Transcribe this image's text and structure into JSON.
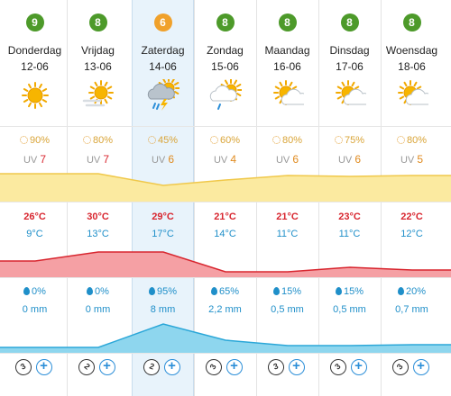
{
  "colors": {
    "badge_green": "#4d9a2a",
    "badge_orange": "#f0a12b",
    "temp_max": "#d8262f",
    "temp_min": "#1f8fc9",
    "rain": "#1f8fc9",
    "uv_band": "#fbeaa0",
    "temp_band": "#f5a0a4",
    "rain_band": "#8ed6ee"
  },
  "days": [
    {
      "score": "9",
      "score_color": "green",
      "day": "Donderdag",
      "date": "12-06",
      "icon": "sun-icon",
      "sun_pct": "90%",
      "uv": "7",
      "tmax": "26°C",
      "tmin": "9°C",
      "rain_pct": "0%",
      "rain_mm": "0 mm",
      "wind": "3",
      "highlight": false
    },
    {
      "score": "8",
      "score_color": "green",
      "day": "Vrijdag",
      "date": "13-06",
      "icon": "sun-haze-icon",
      "sun_pct": "80%",
      "uv": "7",
      "tmax": "30°C",
      "tmin": "13°C",
      "rain_pct": "0%",
      "rain_mm": "0 mm",
      "wind": "2",
      "highlight": false
    },
    {
      "score": "6",
      "score_color": "orange",
      "day": "Zaterdag",
      "date": "14-06",
      "icon": "thunderstorm-icon",
      "sun_pct": "45%",
      "uv": "6",
      "tmax": "29°C",
      "tmin": "17°C",
      "rain_pct": "95%",
      "rain_mm": "8 mm",
      "wind": "2",
      "highlight": true
    },
    {
      "score": "8",
      "score_color": "green",
      "day": "Zondag",
      "date": "15-06",
      "icon": "sun-cloud-rain-icon",
      "sun_pct": "60%",
      "uv": "4",
      "tmax": "21°C",
      "tmin": "14°C",
      "rain_pct": "65%",
      "rain_mm": "2,2 mm",
      "wind": "3",
      "highlight": false
    },
    {
      "score": "8",
      "score_color": "green",
      "day": "Maandag",
      "date": "16-06",
      "icon": "sun-cloud-icon",
      "sun_pct": "80%",
      "uv": "6",
      "tmax": "21°C",
      "tmin": "11°C",
      "rain_pct": "15%",
      "rain_mm": "0,5 mm",
      "wind": "3",
      "highlight": false
    },
    {
      "score": "8",
      "score_color": "green",
      "day": "Dinsdag",
      "date": "17-06",
      "icon": "sun-cloud-icon",
      "sun_pct": "75%",
      "uv": "6",
      "tmax": "23°C",
      "tmin": "11°C",
      "rain_pct": "15%",
      "rain_mm": "0,5 mm",
      "wind": "3",
      "highlight": false
    },
    {
      "score": "8",
      "score_color": "green",
      "day": "Woensdag",
      "date": "18-06",
      "icon": "sun-cloud-icon",
      "sun_pct": "80%",
      "uv": "5",
      "tmax": "22°C",
      "tmin": "12°C",
      "rain_pct": "20%",
      "rain_mm": "0,7 mm",
      "wind": "3",
      "highlight": false
    }
  ],
  "labels": {
    "uv_prefix": "UV"
  }
}
